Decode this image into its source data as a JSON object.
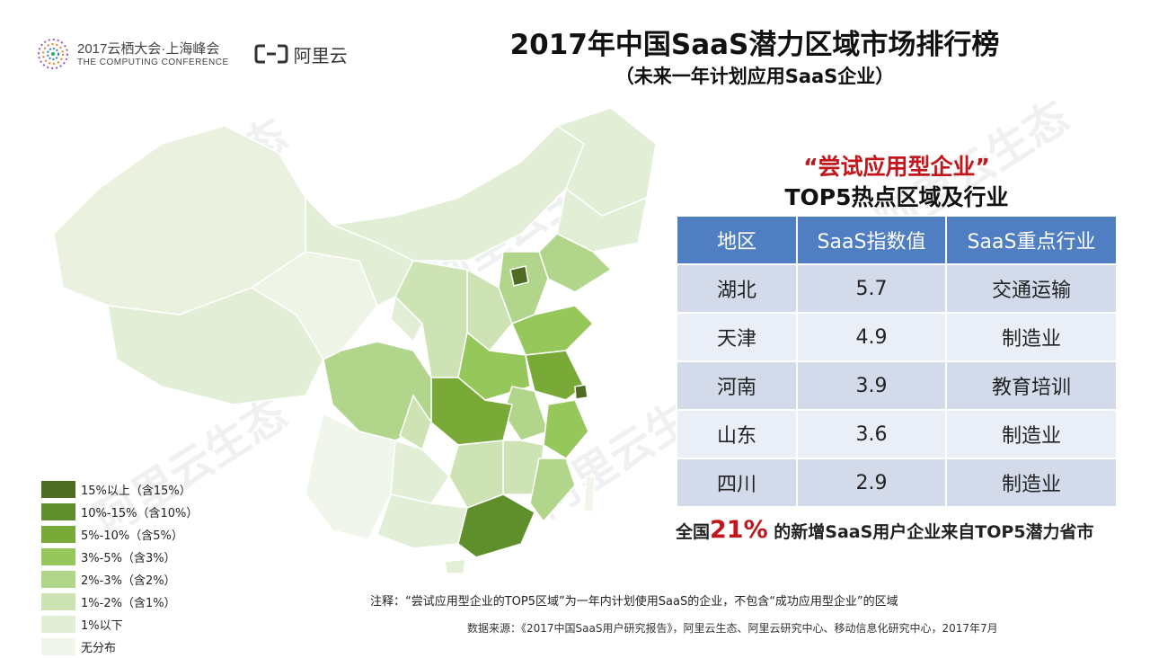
{
  "branding": {
    "conference_line1": "2017云栖大会·上海峰会",
    "conference_line2": "THE COMPUTING CONFERENCE",
    "aliyun": "阿里云"
  },
  "title": "2017年中国SaaS潜力区域市场排行榜",
  "subtitle": "（未来一年计划应用SaaS企业）",
  "legend": [
    {
      "label": "15%以上（含15%）",
      "color": "#4d6b22"
    },
    {
      "label": "10%-15%（含10%）",
      "color": "#5e8f2a"
    },
    {
      "label": "5%-10%（含5%）",
      "color": "#79aa38"
    },
    {
      "label": "3%-5%（含3%）",
      "color": "#96c75a"
    },
    {
      "label": "2%-3%（含2%）",
      "color": "#b1d68b"
    },
    {
      "label": "1%-2%（含1%）",
      "color": "#cde3b4"
    },
    {
      "label": "1%以下",
      "color": "#e3eed6"
    },
    {
      "label": "无分布",
      "color": "#f1f6ec"
    }
  ],
  "table": {
    "title_line1": "“尝试应用型企业”",
    "title_line2": "TOP5热点区域及行业",
    "headers": [
      "地区",
      "SaaS指数值",
      "SaaS重点行业"
    ],
    "rows": [
      {
        "region": "湖北",
        "index": "5.7",
        "industry": "交通运输"
      },
      {
        "region": "天津",
        "index": "4.9",
        "industry": "制造业"
      },
      {
        "region": "河南",
        "index": "3.9",
        "industry": "教育培训"
      },
      {
        "region": "山东",
        "index": "3.6",
        "industry": "制造业"
      },
      {
        "region": "四川",
        "index": "2.9",
        "industry": "制造业"
      }
    ]
  },
  "stat": {
    "prefix": "全国",
    "value": "21%",
    "suffix": " 的新增SaaS用户企业来自TOP5潜力省市"
  },
  "note": "注释：“尝试应用型企业的TOP5区域”为一年内计划使用SaaS的企业，不包含“成功应用型企业”的区域",
  "source": "数据来源：《2017中国SaaS用户研究报告》，阿里云生态、阿里云研究中心、移动信息化研究中心，2017年7月",
  "watermark": "阿里云生态",
  "colors": {
    "accent_red": "#c0161c",
    "table_header": "#4f7ec2"
  }
}
